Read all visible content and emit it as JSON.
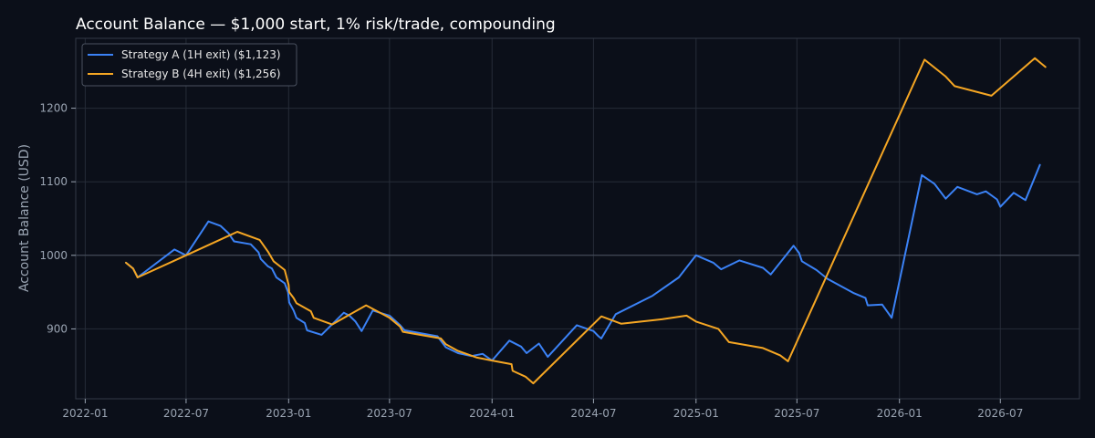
{
  "chart_data": {
    "type": "line",
    "title": "Account Balance — $1,000 start, 1% risk/trade, compounding",
    "xlabel": "",
    "ylabel": "Account Balance (USD)",
    "x_ticks": [
      "2022-01",
      "2022-07",
      "2023-01",
      "2023-07",
      "2024-01",
      "2024-07",
      "2025-01",
      "2025-07",
      "2026-01",
      "2026-07"
    ],
    "y_ticks": [
      900,
      1000,
      1100,
      1200
    ],
    "xlim": [
      "2021-12-15",
      "2026-11-20"
    ],
    "ylim": [
      805,
      1295
    ],
    "baseline": 1000,
    "grid": true,
    "legend_position": "top-left",
    "colors": {
      "background": "#0b0f19",
      "grid": "#262c38",
      "baseline": "#4b5260",
      "spine": "#333a46",
      "tick_text": "#9aa4b2",
      "title_text": "#ffffff"
    },
    "series": [
      {
        "name": "Strategy A (1H exit) ($1,123)",
        "color": "#3b82f6",
        "points": [
          [
            "2022-03-15",
            990
          ],
          [
            "2022-03-28",
            982
          ],
          [
            "2022-04-05",
            970
          ],
          [
            "2022-06-10",
            1008
          ],
          [
            "2022-07-01",
            1000
          ],
          [
            "2022-08-10",
            1046
          ],
          [
            "2022-09-01",
            1040
          ],
          [
            "2022-09-15",
            1030
          ],
          [
            "2022-09-25",
            1019
          ],
          [
            "2022-10-25",
            1015
          ],
          [
            "2022-11-08",
            1004
          ],
          [
            "2022-11-12",
            995
          ],
          [
            "2022-11-25",
            985
          ],
          [
            "2022-12-02",
            982
          ],
          [
            "2022-12-10",
            970
          ],
          [
            "2022-12-25",
            962
          ],
          [
            "2022-12-31",
            950
          ],
          [
            "2023-01-02",
            936
          ],
          [
            "2023-01-10",
            925
          ],
          [
            "2023-01-15",
            915
          ],
          [
            "2023-01-30",
            908
          ],
          [
            "2023-02-03",
            898
          ],
          [
            "2023-03-01",
            892
          ],
          [
            "2023-04-10",
            922
          ],
          [
            "2023-04-20",
            918
          ],
          [
            "2023-05-01",
            910
          ],
          [
            "2023-05-12",
            897
          ],
          [
            "2023-06-01",
            925
          ],
          [
            "2023-07-01",
            918
          ],
          [
            "2023-07-20",
            905
          ],
          [
            "2023-07-28",
            898
          ],
          [
            "2023-09-25",
            890
          ],
          [
            "2023-10-10",
            875
          ],
          [
            "2023-11-01",
            867
          ],
          [
            "2023-11-25",
            863
          ],
          [
            "2023-12-15",
            866
          ],
          [
            "2024-01-01",
            857
          ],
          [
            "2024-02-01",
            884
          ],
          [
            "2024-02-22",
            876
          ],
          [
            "2024-03-03",
            867
          ],
          [
            "2024-03-25",
            880
          ],
          [
            "2024-04-10",
            862
          ],
          [
            "2024-06-01",
            905
          ],
          [
            "2024-07-01",
            897
          ],
          [
            "2024-07-10",
            890
          ],
          [
            "2024-07-15",
            887
          ],
          [
            "2024-08-10",
            920
          ],
          [
            "2024-10-15",
            945
          ],
          [
            "2024-12-01",
            970
          ],
          [
            "2025-01-01",
            1000
          ],
          [
            "2025-02-01",
            990
          ],
          [
            "2025-02-15",
            981
          ],
          [
            "2025-03-20",
            993
          ],
          [
            "2025-05-01",
            983
          ],
          [
            "2025-05-15",
            974
          ],
          [
            "2025-06-25",
            1013
          ],
          [
            "2025-07-05",
            1003
          ],
          [
            "2025-07-10",
            992
          ],
          [
            "2025-08-05",
            980
          ],
          [
            "2025-08-25",
            968
          ],
          [
            "2025-10-10",
            949
          ],
          [
            "2025-11-01",
            942
          ],
          [
            "2025-11-05",
            932
          ],
          [
            "2025-12-01",
            933
          ],
          [
            "2025-12-18",
            915
          ],
          [
            "2026-02-10",
            1109
          ],
          [
            "2026-03-05",
            1097
          ],
          [
            "2026-03-25",
            1077
          ],
          [
            "2026-04-15",
            1093
          ],
          [
            "2026-05-20",
            1083
          ],
          [
            "2026-06-05",
            1087
          ],
          [
            "2026-06-25",
            1076
          ],
          [
            "2026-07-01",
            1066
          ],
          [
            "2026-07-25",
            1085
          ],
          [
            "2026-08-15",
            1075
          ],
          [
            "2026-09-10",
            1123
          ]
        ]
      },
      {
        "name": "Strategy B (4H exit) ($1,256)",
        "color": "#f5a623",
        "points": [
          [
            "2022-03-15",
            990
          ],
          [
            "2022-03-28",
            982
          ],
          [
            "2022-04-05",
            970
          ],
          [
            "2022-07-01",
            1000
          ],
          [
            "2022-10-01",
            1032
          ],
          [
            "2022-11-10",
            1021
          ],
          [
            "2022-11-25",
            1005
          ],
          [
            "2022-12-05",
            992
          ],
          [
            "2022-12-25",
            980
          ],
          [
            "2023-01-01",
            960
          ],
          [
            "2023-01-02",
            950
          ],
          [
            "2023-01-10",
            942
          ],
          [
            "2023-01-15",
            935
          ],
          [
            "2023-02-10",
            924
          ],
          [
            "2023-02-15",
            915
          ],
          [
            "2023-03-20",
            906
          ],
          [
            "2023-05-20",
            932
          ],
          [
            "2023-07-01",
            915
          ],
          [
            "2023-07-20",
            903
          ],
          [
            "2023-07-25",
            896
          ],
          [
            "2023-10-01",
            887
          ],
          [
            "2023-10-10",
            879
          ],
          [
            "2023-11-01",
            870
          ],
          [
            "2023-12-05",
            861
          ],
          [
            "2024-01-01",
            857
          ],
          [
            "2024-02-05",
            852
          ],
          [
            "2024-02-07",
            843
          ],
          [
            "2024-03-01",
            835
          ],
          [
            "2024-03-15",
            826
          ],
          [
            "2024-07-15",
            917
          ],
          [
            "2024-08-20",
            907
          ],
          [
            "2024-11-01",
            913
          ],
          [
            "2024-12-15",
            918
          ],
          [
            "2025-01-01",
            910
          ],
          [
            "2025-02-10",
            900
          ],
          [
            "2025-03-01",
            882
          ],
          [
            "2025-05-01",
            874
          ],
          [
            "2025-06-01",
            864
          ],
          [
            "2025-06-15",
            856
          ],
          [
            "2026-02-15",
            1266
          ],
          [
            "2026-03-25",
            1243
          ],
          [
            "2026-04-10",
            1230
          ],
          [
            "2026-06-15",
            1217
          ],
          [
            "2026-09-01",
            1268
          ],
          [
            "2026-09-20",
            1256
          ]
        ]
      }
    ]
  }
}
